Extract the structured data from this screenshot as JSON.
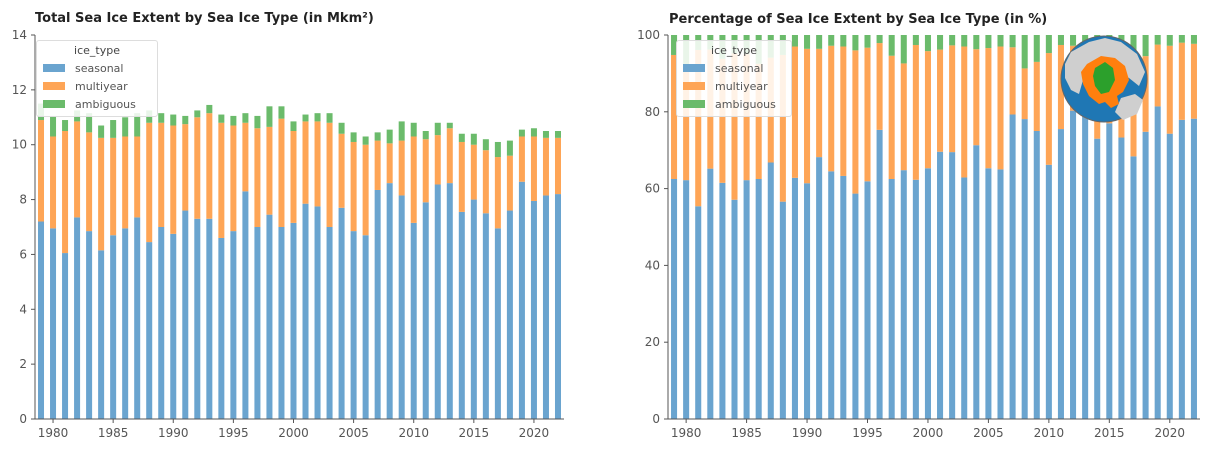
{
  "colors": {
    "seasonal": "#6aa4cf",
    "multiyear": "#fea556",
    "ambiguous": "#6bbb6b",
    "axis": "#555555",
    "text": "#555555"
  },
  "legend": {
    "title": "ice_type",
    "entries": [
      {
        "key": "seasonal",
        "label": "seasonal"
      },
      {
        "key": "multiyear",
        "label": "multiyear"
      },
      {
        "key": "ambiguous",
        "label": "ambiguous"
      }
    ]
  },
  "inset_icon": "arctic-sea-ice-map-icon",
  "chart_data": [
    {
      "type": "bar",
      "stacked": true,
      "title": "Total Sea Ice Extent by Sea Ice Type (in Mkm²)",
      "xlabel": "",
      "ylabel": "",
      "ylim": [
        0,
        14
      ],
      "yticks": [
        0,
        2,
        4,
        6,
        8,
        10,
        12,
        14
      ],
      "xlim": [
        1978.5,
        2022.5
      ],
      "xticks": [
        1980,
        1985,
        1990,
        1995,
        2000,
        2005,
        2010,
        2015,
        2020
      ],
      "x": [
        1979,
        1980,
        1981,
        1982,
        1983,
        1984,
        1985,
        1986,
        1987,
        1988,
        1989,
        1990,
        1991,
        1992,
        1993,
        1994,
        1995,
        1996,
        1997,
        1998,
        1999,
        2000,
        2001,
        2002,
        2003,
        2004,
        2005,
        2006,
        2007,
        2008,
        2009,
        2010,
        2011,
        2012,
        2013,
        2014,
        2015,
        2016,
        2017,
        2018,
        2019,
        2020,
        2021,
        2022
      ],
      "legend_position": "upper left",
      "grid": false,
      "series": [
        {
          "name": "seasonal",
          "values": [
            7.2,
            6.95,
            6.05,
            7.35,
            6.85,
            6.15,
            6.7,
            6.95,
            7.35,
            6.45,
            7.0,
            6.75,
            7.6,
            7.3,
            7.3,
            6.6,
            6.85,
            8.3,
            7.0,
            7.45,
            7.0,
            7.15,
            7.85,
            7.75,
            7.0,
            7.7,
            6.85,
            6.7,
            8.35,
            8.6,
            8.15,
            7.15,
            7.9,
            8.55,
            8.6,
            7.55,
            8.0,
            7.5,
            6.95,
            7.6,
            8.65,
            7.95,
            8.15,
            8.2
          ]
        },
        {
          "name": "multiyear",
          "values": [
            3.7,
            3.35,
            4.45,
            3.5,
            3.6,
            4.1,
            3.55,
            3.35,
            2.95,
            4.35,
            3.8,
            3.95,
            3.15,
            3.7,
            3.85,
            4.2,
            3.85,
            2.5,
            3.6,
            3.2,
            3.95,
            3.35,
            3.0,
            3.1,
            3.8,
            2.7,
            3.25,
            3.3,
            1.8,
            1.45,
            2.0,
            3.15,
            2.3,
            1.8,
            2.0,
            2.55,
            2.0,
            2.3,
            2.6,
            2.0,
            1.65,
            2.35,
            2.1,
            2.05
          ]
        },
        {
          "name": "ambiguous",
          "values": [
            0.6,
            0.75,
            0.4,
            0.4,
            0.7,
            0.45,
            0.65,
            0.7,
            0.85,
            0.45,
            0.35,
            0.4,
            0.3,
            0.25,
            0.3,
            0.3,
            0.35,
            0.35,
            0.45,
            0.75,
            0.45,
            0.35,
            0.25,
            0.3,
            0.35,
            0.4,
            0.35,
            0.3,
            0.3,
            0.5,
            0.7,
            0.5,
            0.3,
            0.45,
            0.2,
            0.3,
            0.4,
            0.4,
            0.55,
            0.55,
            0.25,
            0.3,
            0.25,
            0.25
          ]
        }
      ]
    },
    {
      "type": "bar",
      "stacked": true,
      "title": "Percentage of Sea Ice Extent by Sea Ice Type (in %)",
      "xlabel": "",
      "ylabel": "",
      "ylim": [
        0,
        100
      ],
      "yticks": [
        0,
        20,
        40,
        60,
        80,
        100
      ],
      "xlim": [
        1978.5,
        2022.5
      ],
      "xticks": [
        1980,
        1985,
        1990,
        1995,
        2000,
        2005,
        2010,
        2015,
        2020
      ],
      "x": [
        1979,
        1980,
        1981,
        1982,
        1983,
        1984,
        1985,
        1986,
        1987,
        1988,
        1989,
        1990,
        1991,
        1992,
        1993,
        1994,
        1995,
        1996,
        1997,
        1998,
        1999,
        2000,
        2001,
        2002,
        2003,
        2004,
        2005,
        2006,
        2007,
        2008,
        2009,
        2010,
        2011,
        2012,
        2013,
        2014,
        2015,
        2016,
        2017,
        2018,
        2019,
        2020,
        2021,
        2022
      ],
      "legend_position": "upper left",
      "grid": false,
      "series": [
        {
          "name": "seasonal",
          "values": [
            62.5,
            62.2,
            55.4,
            65.2,
            61.5,
            57.1,
            62.2,
            62.5,
            66.8,
            56.6,
            62.8,
            61.4,
            68.2,
            64.5,
            63.3,
            58.7,
            61.9,
            75.3,
            62.5,
            64.8,
            62.3,
            65.3,
            69.6,
            69.5,
            62.9,
            71.3,
            65.3,
            65.0,
            79.3,
            78.1,
            75.0,
            66.2,
            75.5,
            80.3,
            79.5,
            73.0,
            77.0,
            73.3,
            68.4,
            74.8,
            81.4,
            74.3,
            77.9,
            78.2
          ]
        },
        {
          "name": "multiyear",
          "values": [
            32.3,
            30.0,
            40.7,
            31.0,
            32.3,
            38.1,
            32.8,
            30.0,
            27.3,
            38.2,
            34.2,
            35.0,
            28.2,
            32.7,
            33.7,
            37.3,
            34.8,
            22.6,
            32.1,
            27.8,
            35.1,
            30.5,
            26.6,
            27.8,
            34.1,
            25.0,
            31.3,
            32.0,
            17.5,
            13.2,
            18.0,
            29.1,
            21.9,
            16.9,
            18.2,
            24.5,
            19.0,
            22.7,
            26.2,
            19.7,
            16.1,
            22.9,
            20.1,
            19.5
          ]
        },
        {
          "name": "ambiguous",
          "values": [
            5.2,
            7.8,
            3.9,
            3.8,
            6.2,
            4.8,
            5.0,
            7.5,
            5.9,
            5.2,
            3.0,
            3.6,
            3.6,
            2.8,
            3.0,
            4.0,
            3.3,
            2.1,
            5.4,
            7.4,
            2.6,
            4.2,
            3.8,
            2.7,
            3.0,
            3.7,
            3.4,
            3.0,
            3.2,
            8.7,
            7.0,
            4.7,
            2.6,
            2.8,
            2.3,
            2.5,
            4.0,
            4.0,
            5.4,
            5.5,
            2.5,
            2.8,
            2.0,
            2.3
          ]
        }
      ]
    }
  ]
}
